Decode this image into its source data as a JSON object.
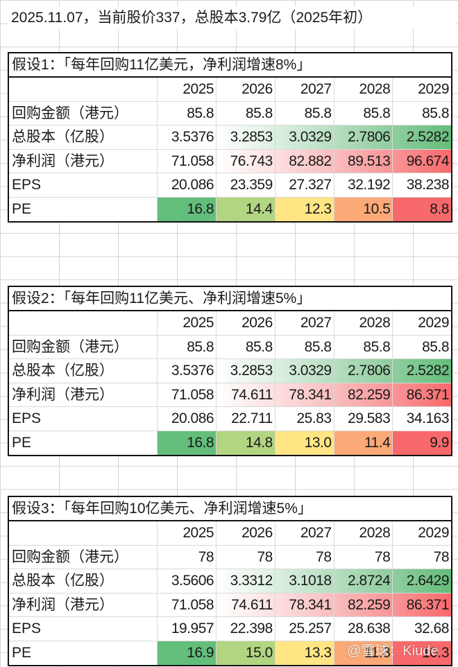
{
  "top_note": "2025.11.07，当前股价337，总股本3.79亿（2025年初）",
  "row_labels": {
    "buyback": "回购金额（港元）",
    "shares": "总股本（亿股）",
    "net_profit": "净利润（港元）",
    "eps": "EPS",
    "pe": "PE"
  },
  "years": [
    "2025",
    "2026",
    "2027",
    "2028",
    "2029"
  ],
  "colors": {
    "pe_scale": [
      "#63BE7B",
      "#B1D580",
      "#FFE584",
      "#FBA977",
      "#F8696B"
    ],
    "shares_scale": [
      "#FFFFFF",
      "#DDEFE1",
      "#B6DEC0",
      "#8FCD9E",
      "#63BE7B"
    ],
    "profit_scale": [
      "#FFFFFF",
      "#FCE0E0",
      "#F9BDBE",
      "#F99597",
      "#F8696B"
    ]
  },
  "tables": [
    {
      "title": "假设1：「每年回购11亿美元，净利润增速8%」",
      "buyback": [
        "85.8",
        "85.8",
        "85.8",
        "85.8",
        "85.8"
      ],
      "shares": [
        "3.5376",
        "3.2853",
        "3.0329",
        "2.7806",
        "2.5282"
      ],
      "net_profit": [
        "71.058",
        "76.743",
        "82.882",
        "89.513",
        "96.674"
      ],
      "eps": [
        "20.086",
        "23.359",
        "27.327",
        "32.192",
        "38.238"
      ],
      "pe": [
        "16.8",
        "14.4",
        "12.3",
        "10.5",
        "8.8"
      ]
    },
    {
      "title": "假设2：「每年回购11亿美元、净利润增速5%」",
      "buyback": [
        "85.8",
        "85.8",
        "85.8",
        "85.8",
        "85.8"
      ],
      "shares": [
        "3.5376",
        "3.2853",
        "3.0329",
        "2.7806",
        "2.5282"
      ],
      "net_profit": [
        "71.058",
        "74.611",
        "78.341",
        "82.259",
        "86.371"
      ],
      "eps": [
        "20.086",
        "22.711",
        "25.83",
        "29.583",
        "34.163"
      ],
      "pe": [
        "16.8",
        "14.8",
        "13.0",
        "11.4",
        "9.9"
      ]
    },
    {
      "title": "假设3：「每年回购10亿美元、净利润增速5%」",
      "buyback": [
        "78",
        "78",
        "78",
        "78",
        "78"
      ],
      "shares": [
        "3.5606",
        "3.3312",
        "3.1018",
        "2.8724",
        "2.6429"
      ],
      "net_profit": [
        "71.058",
        "74.611",
        "78.341",
        "82.259",
        "86.371"
      ],
      "eps": [
        "19.957",
        "22.398",
        "25.257",
        "28.638",
        "32.68"
      ],
      "pe": [
        "16.9",
        "15.0",
        "13.3",
        "11.8",
        "10.3"
      ]
    }
  ],
  "watermark": "@雪球：Kiude"
}
